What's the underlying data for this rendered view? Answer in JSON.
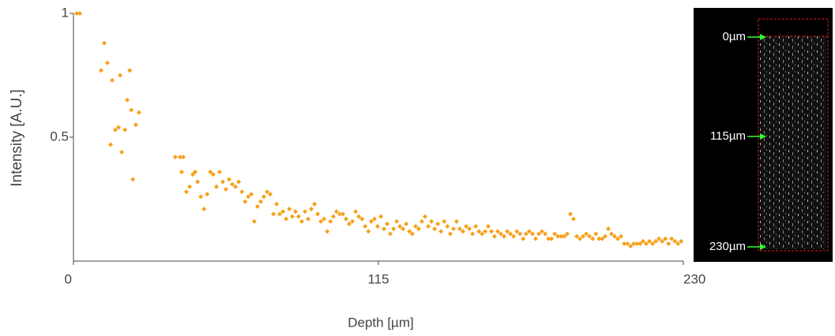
{
  "chart_data": {
    "type": "scatter",
    "xlabel": "Depth [µm]",
    "ylabel": "Intensity [A.U.]",
    "color": "#f7a01b",
    "xlim": [
      0,
      230
    ],
    "xticks": [
      0,
      115,
      230
    ],
    "ylim": [
      0,
      1
    ],
    "yticks": [
      0.5,
      1
    ],
    "x": [
      1.2,
      2.4,
      10.4,
      11.6,
      12.8,
      14.0,
      14.6,
      15.8,
      17.0,
      17.6,
      18.2,
      19.4,
      20.3,
      21.2,
      21.8,
      22.4,
      23.5,
      24.7,
      38.4,
      40.2,
      40.8,
      41.4,
      42.6,
      43.8,
      45.0,
      45.9,
      46.8,
      48.0,
      49.2,
      50.4,
      51.6,
      52.7,
      53.9,
      55.1,
      56.3,
      57.5,
      58.7,
      59.9,
      61.1,
      62.3,
      63.5,
      64.7,
      65.9,
      67.1,
      68.2,
      69.4,
      70.6,
      71.8,
      73.0,
      74.2,
      75.4,
      76.6,
      77.8,
      79.0,
      80.2,
      81.4,
      82.5,
      83.7,
      84.9,
      86.1,
      87.3,
      88.5,
      89.7,
      90.9,
      92.1,
      93.3,
      94.5,
      95.7,
      96.9,
      98.0,
      99.2,
      100.4,
      101.6,
      102.8,
      104.0,
      105.2,
      106.4,
      107.6,
      108.8,
      110.0,
      111.2,
      112.3,
      113.5,
      114.7,
      115.9,
      117.1,
      118.3,
      119.5,
      120.7,
      121.9,
      123.1,
      124.3,
      125.5,
      126.7,
      127.8,
      129.0,
      130.2,
      131.4,
      132.6,
      133.8,
      135.0,
      136.2,
      137.4,
      138.6,
      139.8,
      141.0,
      142.1,
      143.3,
      144.5,
      145.7,
      146.9,
      148.1,
      149.3,
      150.5,
      151.7,
      152.9,
      154.1,
      155.3,
      156.4,
      157.6,
      158.8,
      160.0,
      161.2,
      162.4,
      163.6,
      164.8,
      166.0,
      167.2,
      168.4,
      169.6,
      170.7,
      171.9,
      173.1,
      174.3,
      175.5,
      176.7,
      177.9,
      179.1,
      180.3,
      181.5,
      182.7,
      183.9,
      185.1,
      186.2,
      187.4,
      188.6,
      189.8,
      191.0,
      192.2,
      193.4,
      194.6,
      195.8,
      197.0,
      198.2,
      199.4,
      200.5,
      201.7,
      202.9,
      204.1,
      205.3,
      206.5,
      207.7,
      208.9,
      210.1,
      211.3,
      212.5,
      213.7,
      214.8,
      216.0,
      217.2,
      218.4,
      219.6,
      220.8,
      222.0,
      223.2,
      224.4,
      225.6,
      226.8,
      228.0,
      229.2
    ],
    "values": [
      1.0,
      1.0,
      0.77,
      0.88,
      0.8,
      0.47,
      0.73,
      0.53,
      0.54,
      0.75,
      0.44,
      0.53,
      0.65,
      0.77,
      0.61,
      0.33,
      0.55,
      0.6,
      0.42,
      0.42,
      0.36,
      0.42,
      0.28,
      0.3,
      0.35,
      0.36,
      0.32,
      0.26,
      0.21,
      0.27,
      0.36,
      0.35,
      0.3,
      0.36,
      0.32,
      0.29,
      0.33,
      0.31,
      0.3,
      0.32,
      0.28,
      0.24,
      0.26,
      0.27,
      0.16,
      0.22,
      0.24,
      0.26,
      0.28,
      0.27,
      0.19,
      0.23,
      0.19,
      0.2,
      0.17,
      0.21,
      0.18,
      0.2,
      0.18,
      0.16,
      0.2,
      0.17,
      0.21,
      0.23,
      0.19,
      0.16,
      0.17,
      0.12,
      0.16,
      0.18,
      0.2,
      0.19,
      0.19,
      0.17,
      0.15,
      0.16,
      0.2,
      0.18,
      0.17,
      0.14,
      0.12,
      0.16,
      0.17,
      0.14,
      0.18,
      0.13,
      0.15,
      0.11,
      0.13,
      0.16,
      0.14,
      0.13,
      0.15,
      0.12,
      0.11,
      0.14,
      0.13,
      0.16,
      0.18,
      0.14,
      0.16,
      0.13,
      0.15,
      0.12,
      0.16,
      0.14,
      0.11,
      0.13,
      0.16,
      0.13,
      0.12,
      0.14,
      0.13,
      0.11,
      0.14,
      0.12,
      0.11,
      0.12,
      0.14,
      0.12,
      0.1,
      0.12,
      0.11,
      0.1,
      0.12,
      0.11,
      0.1,
      0.12,
      0.11,
      0.09,
      0.11,
      0.12,
      0.11,
      0.09,
      0.11,
      0.12,
      0.11,
      0.09,
      0.09,
      0.11,
      0.1,
      0.1,
      0.1,
      0.11,
      0.19,
      0.17,
      0.1,
      0.09,
      0.1,
      0.11,
      0.1,
      0.09,
      0.11,
      0.09,
      0.09,
      0.1,
      0.13,
      0.11,
      0.1,
      0.09,
      0.1,
      0.07,
      0.07,
      0.06,
      0.07,
      0.07,
      0.07,
      0.08,
      0.07,
      0.08,
      0.07,
      0.08,
      0.09,
      0.08,
      0.09,
      0.07,
      0.09,
      0.08,
      0.07,
      0.08
    ],
    "annotations": [
      "0µm",
      "115µm",
      "230µm"
    ]
  }
}
